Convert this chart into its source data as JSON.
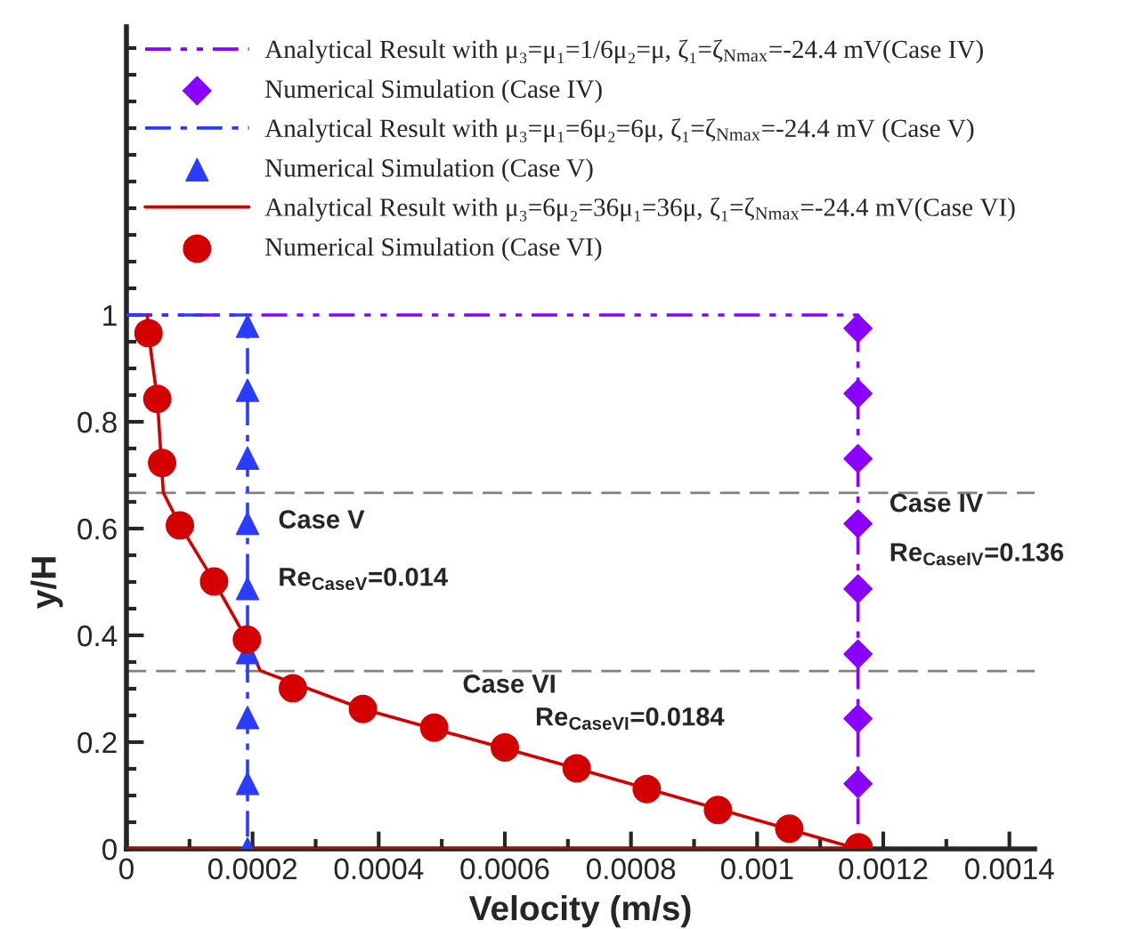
{
  "chart_data": {
    "type": "line",
    "xlabel": "Velocity (m/s)",
    "ylabel": "y/H",
    "xlim": [
      0,
      0.00144
    ],
    "ylim": [
      0,
      1.54
    ],
    "xticks": [
      0,
      0.0002,
      0.0004,
      0.0006,
      0.0008,
      0.001,
      0.0012,
      0.0014
    ],
    "yticks": [
      0,
      0.2,
      0.4,
      0.6,
      0.8,
      1
    ],
    "grid": false,
    "legend": "top",
    "series": [
      {
        "name": "Analytical Result with μ₃=μ₁=1/6μ₂=μ, ζ₁=ζ$_{Nmax}$=-24.4 mV(Case IV)",
        "color": "#8a00ff",
        "line_style": "dashdotdot",
        "marker": "none",
        "x": [
          0,
          0.00116,
          0.00116
        ],
        "values": [
          1,
          1,
          0
        ]
      },
      {
        "type": "scatter",
        "name": "Numerical Simulation (Case IV)",
        "color": "#8a00ff",
        "marker": "diamond",
        "x": [
          0.00116,
          0.00116,
          0.00116,
          0.00116,
          0.00116,
          0.00116,
          0.00116,
          0.00116
        ],
        "values": [
          0.975,
          0.853,
          0.731,
          0.609,
          0.487,
          0.365,
          0.244,
          0.122
        ]
      },
      {
        "name": "Analytical Result with μ₃=μ₁=6μ₂=6μ, ζ₁=ζ$_{Nmax}$=-24.4 mV (Case V)",
        "color": "#2a3cff",
        "line_style": "dashdot",
        "marker": "none",
        "x": [
          0,
          0.000192,
          0.000192
        ],
        "values": [
          1,
          1,
          0
        ]
      },
      {
        "type": "scatter",
        "name": "Numerical Simulation (Case V)",
        "color": "#2a3cff",
        "marker": "triangle",
        "x": [
          0.000192,
          0.000192,
          0.000192,
          0.000192,
          0.000192,
          0.000192,
          0.000192,
          0.000192,
          0.000192
        ],
        "values": [
          0.979,
          0.859,
          0.732,
          0.61,
          0.488,
          0.368,
          0.246,
          0.123,
          0.0
        ]
      },
      {
        "name": "Analytical Result with μ₃=6μ₂=36μ₁=36μ, ζ₁=ζ$_{Nmax}$=-24.4 mV(Case VI)",
        "color": "#d40000",
        "line_style": "solid",
        "marker": "none",
        "x": [
          3.3e-05,
          3.5e-05,
          4.9e-05,
          5.85e-05,
          8.5e-05,
          0.000139,
          0.000191,
          0.000212,
          0.000375,
          0.00071,
          0.00116,
          0
        ],
        "values": [
          1,
          0.966,
          0.843,
          0.667,
          0.606,
          0.501,
          0.392,
          0.334,
          0.262,
          0.152,
          0,
          0
        ]
      },
      {
        "type": "scatter",
        "name": "Numerical Simulation (Case VI)",
        "color": "#d40000",
        "marker": "circle",
        "x": [
          3.5e-05,
          4.9e-05,
          5.66e-05,
          8.48e-05,
          0.000139,
          0.000191,
          0.000264,
          0.000375,
          0.000488,
          0.0006,
          0.000714,
          0.000825,
          0.000938,
          0.001051,
          0.001161
        ],
        "values": [
          0.966,
          0.843,
          0.723,
          0.606,
          0.501,
          0.392,
          0.301,
          0.262,
          0.227,
          0.19,
          0.151,
          0.112,
          0.073,
          0.038,
          0.003
        ]
      }
    ],
    "ref_lines": [
      {
        "axis": "y",
        "value": 0.667,
        "color": "#808080",
        "line_style": "dashed"
      },
      {
        "axis": "y",
        "value": 0.333,
        "color": "#808080",
        "line_style": "dashed"
      }
    ],
    "annotations": [
      "Case V",
      "Re$_{CaseV}$=0.014",
      "Case VI",
      "Re$_{CaseVI}$=0.0184",
      "Case IV",
      "Re$_{CaseIV}$=0.136"
    ]
  }
}
